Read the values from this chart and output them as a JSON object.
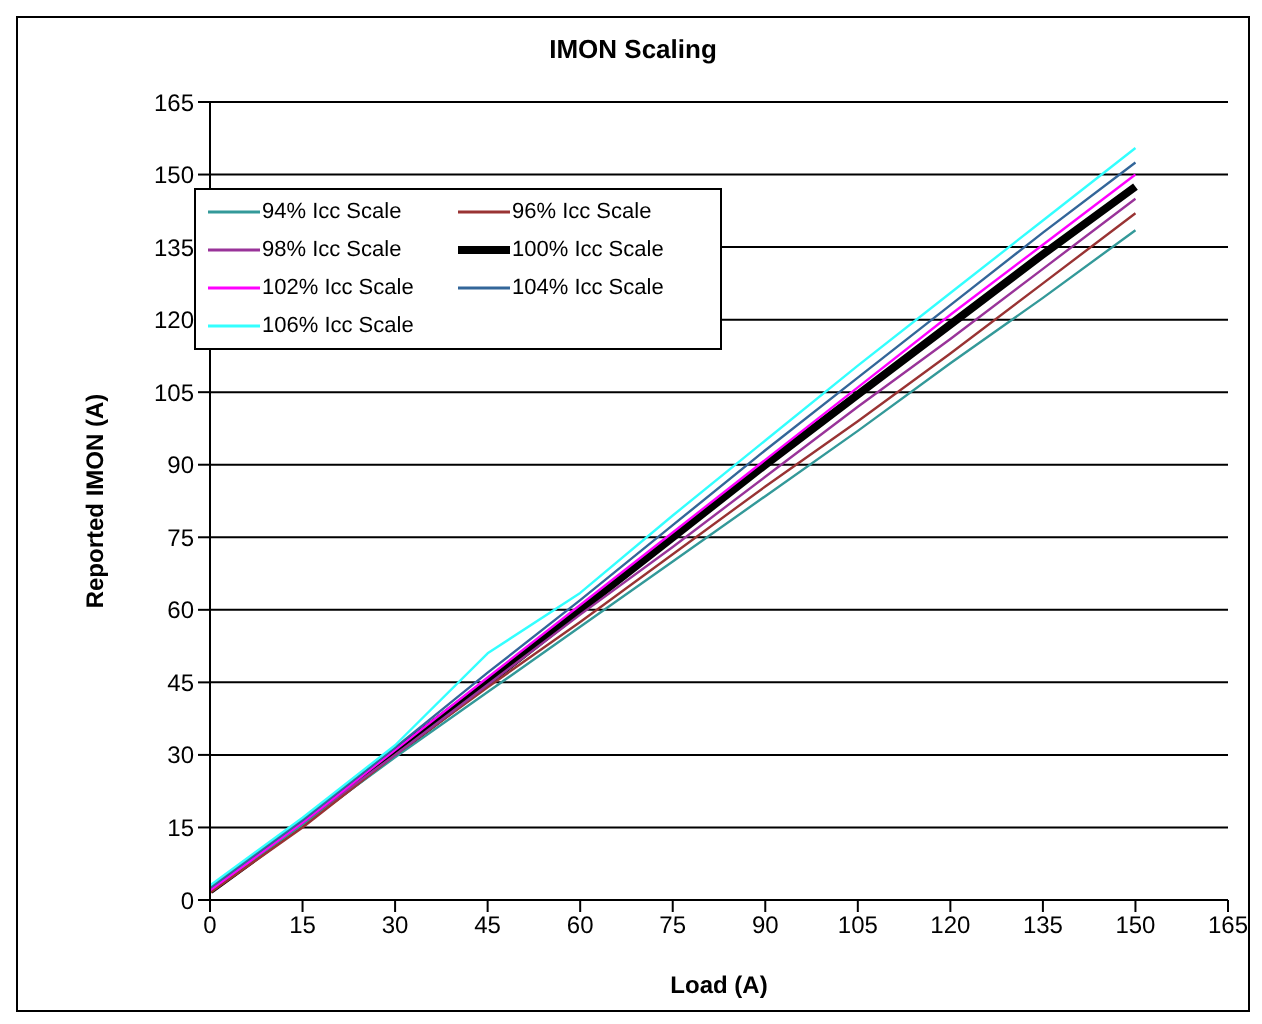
{
  "chart_data": {
    "type": "line",
    "title": "IMON Scaling",
    "xlabel": "Load (A)",
    "ylabel": "Reported IMON (A)",
    "x": [
      0,
      15,
      30,
      45,
      60,
      75,
      90,
      105,
      120,
      135,
      150
    ],
    "series": [
      {
        "name": "94% Icc Scale",
        "color": "#339999",
        "values": [
          2,
          15.5,
          29.5,
          43,
          56.5,
          70,
          83.5,
          97,
          111,
          124.5,
          138.5
        ]
      },
      {
        "name": "96% Icc Scale",
        "color": "#993333",
        "values": [
          1.5,
          15,
          30,
          44,
          57.5,
          71.5,
          85.5,
          99,
          113,
          127.5,
          142
        ]
      },
      {
        "name": "98% Icc Scale",
        "color": "#993399",
        "values": [
          2,
          16,
          30,
          44.5,
          59,
          73,
          87.5,
          102,
          116,
          130.5,
          145
        ]
      },
      {
        "name": "100% Icc Scale",
        "color": "#000000",
        "values": [
          2,
          16,
          30.5,
          45,
          60,
          75,
          90,
          104.5,
          119,
          133.5,
          147.5
        ]
      },
      {
        "name": "102% Icc Scale",
        "color": "#ff00ff",
        "values": [
          2,
          16,
          31,
          46,
          61,
          76,
          91,
          106,
          121,
          135.5,
          150
        ]
      },
      {
        "name": "104% Icc Scale",
        "color": "#336699",
        "values": [
          2.5,
          16.5,
          31.5,
          47,
          62,
          77.5,
          93,
          108,
          123,
          138,
          152.5
        ]
      },
      {
        "name": "106% Icc Scale",
        "color": "#33ffff",
        "values": [
          3,
          17,
          32,
          51,
          63.5,
          79.5,
          95,
          110.5,
          125.5,
          140.5,
          155.5
        ]
      }
    ],
    "xlim": [
      0,
      165
    ],
    "xticks": [
      0,
      15,
      30,
      45,
      60,
      75,
      90,
      105,
      120,
      135,
      150,
      165
    ],
    "ylim": [
      0,
      165
    ],
    "yticks": [
      0,
      15,
      30,
      45,
      60,
      75,
      90,
      105,
      120,
      135,
      150,
      165
    ],
    "grid": "y",
    "legend": "top left",
    "marker": "none",
    "line_style": "solid"
  }
}
